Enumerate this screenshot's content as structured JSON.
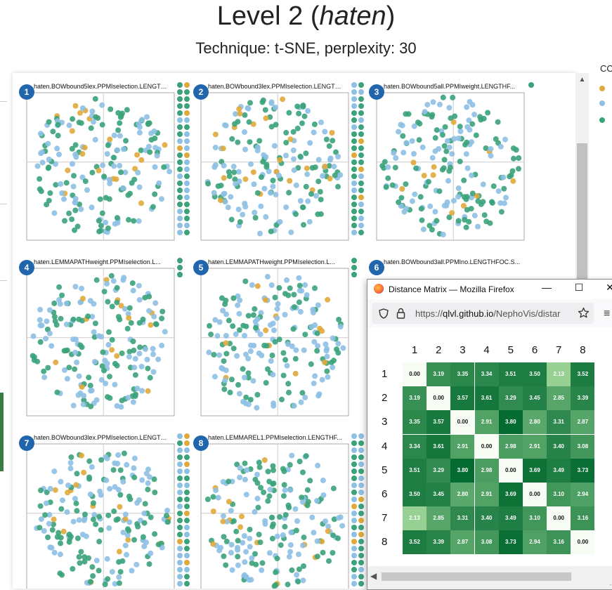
{
  "page": {
    "title_prefix": "Level 2 (",
    "title_word": "haten",
    "title_suffix": ")",
    "subtitle": "Technique: t-SNE, perplexity: 30"
  },
  "legend": {
    "title": "CO",
    "colors": [
      "#e0a93b",
      "#8ec0e4",
      "#3aa37a"
    ]
  },
  "plots": [
    {
      "badge": "1",
      "title": "haten.BOWbound5lex.PPMIselection.LENGTHF..."
    },
    {
      "badge": "2",
      "title": "haten.BOWbound3lex.PPMIselection.LENGTHF..."
    },
    {
      "badge": "3",
      "title": "haten.BOWbound5all.PPMIweight.LENGTHF..."
    },
    {
      "badge": "4",
      "title": "haten.LEMMAPATHweight.PPMIselection.L..."
    },
    {
      "badge": "5",
      "title": "haten.LEMMAPATHweight.PPMIselection.L..."
    },
    {
      "badge": "6",
      "title": "haten.BOWbound3all.PPMIno.LENGTHFOC.S..."
    },
    {
      "badge": "7",
      "title": "haten.BOWbound3lex.PPMIselection.LENGTHF..."
    },
    {
      "badge": "8",
      "title": "haten.LEMMAREL1.PPMIselection.LENGTHF..."
    }
  ],
  "browser": {
    "window_title": "Distance Matrix — Mozilla Firefox",
    "url_prefix": "https://",
    "url_domain": "qlvl.github.io",
    "url_path": "/NephoVis/distar",
    "minimize_glyph": "—",
    "maximize_glyph": "☐",
    "close_glyph": "✕",
    "menu_glyph": "≡"
  },
  "matrix": {
    "labels": [
      "1",
      "2",
      "3",
      "4",
      "5",
      "6",
      "7",
      "8"
    ],
    "values": [
      [
        "0.00",
        "3.19",
        "3.35",
        "3.34",
        "3.51",
        "3.50",
        "2.13",
        "3.52"
      ],
      [
        "3.19",
        "0.00",
        "3.57",
        "3.61",
        "3.29",
        "3.45",
        "2.85",
        "3.39"
      ],
      [
        "3.35",
        "3.57",
        "0.00",
        "2.91",
        "3.80",
        "2.80",
        "3.31",
        "2.87"
      ],
      [
        "3.34",
        "3.61",
        "2.91",
        "0.00",
        "2.98",
        "2.91",
        "3.40",
        "3.08"
      ],
      [
        "3.51",
        "3.29",
        "3.80",
        "2.98",
        "0.00",
        "3.69",
        "3.49",
        "3.73"
      ],
      [
        "3.50",
        "3.45",
        "2.80",
        "2.91",
        "3.69",
        "0.00",
        "3.10",
        "2.94"
      ],
      [
        "2.13",
        "2.85",
        "3.31",
        "3.40",
        "3.49",
        "3.10",
        "0.00",
        "3.16"
      ],
      [
        "3.52",
        "3.39",
        "2.87",
        "3.08",
        "3.73",
        "2.94",
        "3.16",
        "0.00"
      ]
    ]
  }
}
